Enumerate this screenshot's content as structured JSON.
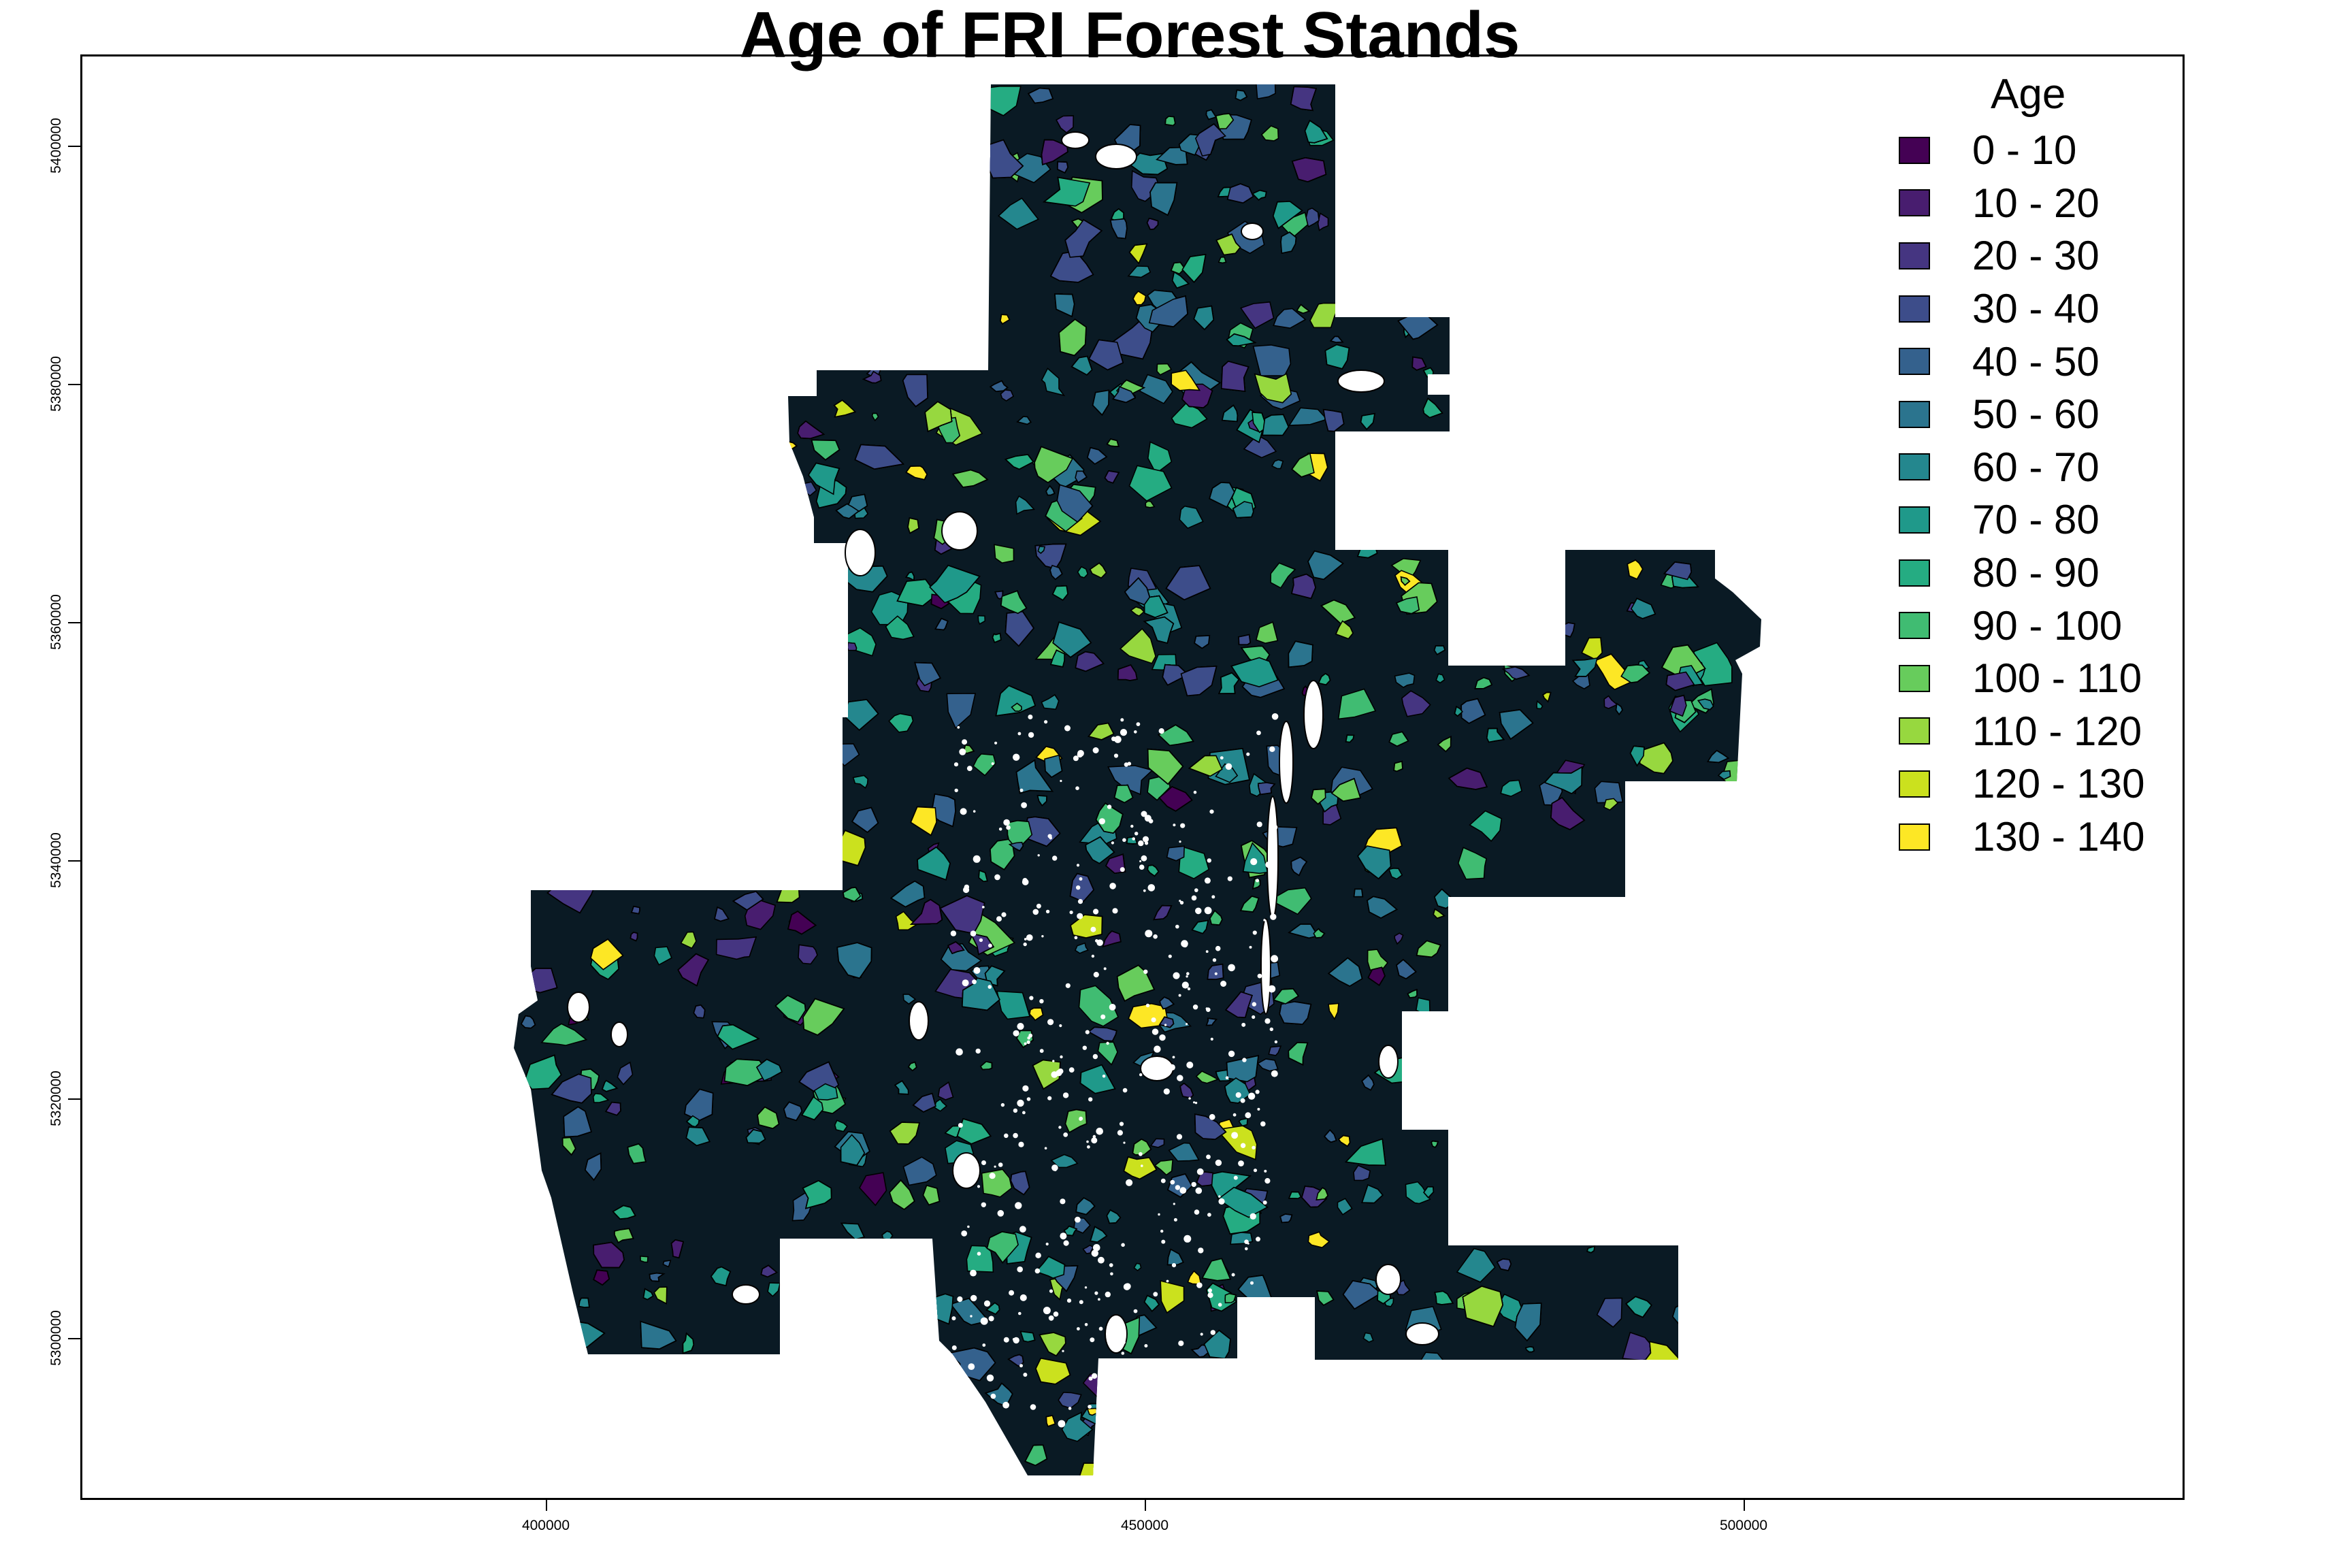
{
  "title": "Age of FRI Forest Stands",
  "axes": {
    "x_ticks": [
      "400000",
      "450000",
      "500000"
    ],
    "y_ticks": [
      "5400000",
      "5380000",
      "5360000",
      "5340000",
      "5320000",
      "5300000"
    ]
  },
  "legend": {
    "title": "Age",
    "items": [
      {
        "label": "0 - 10",
        "color": "#440154"
      },
      {
        "label": "10 - 20",
        "color": "#481d6f"
      },
      {
        "label": "20 - 30",
        "color": "#453581"
      },
      {
        "label": "30 - 40",
        "color": "#3d4d8a"
      },
      {
        "label": "40 - 50",
        "color": "#34618d"
      },
      {
        "label": "50 - 60",
        "color": "#2b748e"
      },
      {
        "label": "60 - 70",
        "color": "#24878e"
      },
      {
        "label": "70 - 80",
        "color": "#1f998a"
      },
      {
        "label": "80 - 90",
        "color": "#25ac82"
      },
      {
        "label": "90 - 100",
        "color": "#40bc72"
      },
      {
        "label": "100 - 110",
        "color": "#67cc5c"
      },
      {
        "label": "110 - 120",
        "color": "#97d83f"
      },
      {
        "label": "120 - 130",
        "color": "#cbe11e"
      },
      {
        "label": "130 - 140",
        "color": "#fde725"
      }
    ]
  },
  "map": {
    "background_color": "#0a1a24",
    "outline_color": "#000000",
    "water_color": "#ffffff"
  }
}
